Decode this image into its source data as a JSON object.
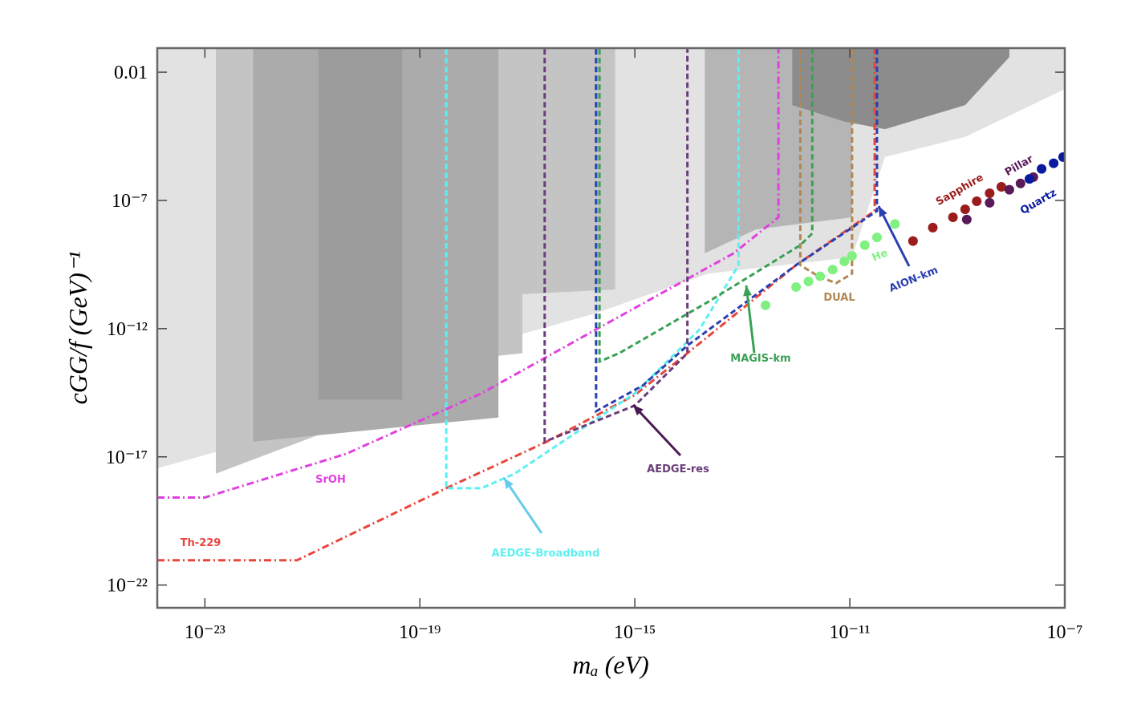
{
  "chart_data": {
    "type": "line",
    "x_label": "mₐ (eV)",
    "y_label": "cGG/f (GeV)⁻¹",
    "x_log": true,
    "y_log": true,
    "xlim": [
      1.3e-24,
      1e-07
    ],
    "ylim": [
      1.3e-23,
      0.087
    ],
    "xticks": [
      {
        "value": 1e-23,
        "label": "10⁻²³"
      },
      {
        "value": 1e-19,
        "label": "10⁻¹⁹"
      },
      {
        "value": 1e-15,
        "label": "10⁻¹⁵"
      },
      {
        "value": 1e-11,
        "label": "10⁻¹¹"
      },
      {
        "value": 1e-07,
        "label": "10⁻⁷"
      }
    ],
    "yticks": [
      0.01,
      {
        "value": 1e-07,
        "label": "10⁻⁷"
      },
      {
        "value": 1e-12,
        "label": "10⁻¹²"
      },
      {
        "value": 1e-17,
        "label": "10⁻¹⁷"
      },
      {
        "value": 1e-22,
        "label": "10⁻²²"
      }
    ],
    "regions": [
      {
        "color": "#e2e2e2",
        "x": [
          1.3e-24,
          2.3e-23,
          1.5e-21,
          9.3e-20,
          1.4e-18,
          1.8e-16,
          2.3e-14,
          1.1e-11,
          4.5e-11,
          1.4e-09,
          1e-07
        ],
        "values": [
          3.6e-18,
          1.9e-17,
          2.3e-16,
          1.2e-14,
          2.2e-13,
          3.9e-12,
          1.4e-10,
          6e-10,
          4.9e-06,
          3e-05,
          0.0022
        ]
      },
      {
        "color": "#c4c4c4",
        "x": [
          1.6e-23,
          1.5e-21,
          9.3e-20,
          1.4e-18,
          8.1e-18,
          8.1e-18,
          4.3e-16
        ],
        "values": [
          2.2e-18,
          8.1e-17,
          6e-15,
          7.4e-14,
          1.1e-13,
          2.2e-11,
          3.4e-11
        ]
      },
      {
        "color": "#ababab",
        "x": [
          7.9e-23,
          9.3e-20,
          2.9e-18
        ],
        "values": [
          3.9e-17,
          1.7e-16,
          3.4e-16
        ]
      },
      {
        "color": "#9c9c9c",
        "x": [
          1.3e-21,
          4.7e-20
        ],
        "values": [
          1.7e-15,
          1.7e-15
        ]
      },
      {
        "color": "#b5b5b5",
        "x": [
          2e-14,
          1.8e-13,
          1.1e-11
        ],
        "values": [
          8.7e-10,
          7.4e-09,
          2.2e-08
        ]
      },
      {
        "color": "#8c8c8c",
        "x": [
          8.5e-13,
          7.9e-12,
          4.5e-11,
          1.4e-09,
          9.3e-09
        ],
        "values": [
          0.00052,
          0.00012,
          6e-05,
          0.00052,
          0.039
        ]
      }
    ],
    "series": [
      {
        "name": "Th-229",
        "type": "line",
        "style": "dashdot",
        "color": "#e8453c",
        "x": [
          1.3e-24,
          5.2e-22,
          3.1e-19,
          2.3e-17,
          1e-15,
          9.5e-15,
          1e-12,
          2.9e-11,
          2.9e-11
        ],
        "values": [
          9.3e-22,
          9.3e-22,
          6e-19,
          3.9e-17,
          2.6e-15,
          1.1e-13,
          3e-10,
          3.9e-08,
          0.08
        ]
      },
      {
        "name": "SrOH",
        "type": "line",
        "style": "dashdot",
        "color": "#e040e0",
        "x": [
          1.3e-24,
          1e-23,
          4.2e-21,
          1.4e-18,
          1.9e-16,
          6.9e-14,
          4.7e-13,
          4.7e-13
        ],
        "values": [
          2.6e-19,
          2.6e-19,
          1.3e-17,
          3e-15,
          9.3e-13,
          8.7e-10,
          2.2e-08,
          0.08
        ]
      },
      {
        "name": "AEDGE-Broadband",
        "type": "line",
        "style": "dashed",
        "color": "#5ef0f0",
        "x": [
          3.1e-19,
          3.1e-19,
          1.4e-18,
          5.8e-18,
          1e-15,
          1.6e-14,
          8.5e-14,
          8.5e-14
        ],
        "values": [
          0.08,
          6e-19,
          6e-19,
          2.2e-18,
          3e-15,
          9.3e-13,
          3e-10,
          0.08
        ]
      },
      {
        "name": "AEDGE-res",
        "type": "line",
        "style": "dashed",
        "color": "#6a3d7a",
        "x": [
          2.1e-17,
          2.1e-17,
          1e-15,
          9.5e-15,
          9.5e-15
        ],
        "values": [
          0.08,
          3.9e-17,
          1e-15,
          1.1e-13,
          0.08
        ]
      },
      {
        "name": "AION-km",
        "type": "line",
        "style": "dashed",
        "color": "#2a3fb0",
        "x": [
          1.9e-16,
          1.9e-16,
          1.4e-15,
          9.5e-15,
          1e-12,
          3.2e-11,
          3.2e-11
        ],
        "values": [
          0.08,
          6e-16,
          6e-15,
          2.2e-13,
          3e-10,
          3.9e-08,
          0.08
        ]
      },
      {
        "name": "MAGIS-km",
        "type": "line",
        "style": "dashed",
        "color": "#3aa055",
        "x": [
          2.2e-16,
          2.2e-16,
          5.1e-16,
          2.3e-14,
          1.2e-12,
          2e-12,
          2e-12
        ],
        "values": [
          0.08,
          5.2e-14,
          1.1e-13,
          1.1e-11,
          1.8e-09,
          5.2e-09,
          0.08
        ]
      },
      {
        "name": "DUAL",
        "type": "line",
        "style": "dashed",
        "color": "#b08850",
        "x": [
          1.2e-12,
          1.2e-12,
          2.8e-12,
          5.6e-12,
          1.1e-11,
          1.1e-11
        ],
        "values": [
          0.08,
          3e-10,
          1e-10,
          6e-11,
          1.4e-10,
          0.08
        ]
      },
      {
        "name": "He",
        "type": "scatter",
        "color": "#80f080",
        "x": [
          2.7e-13,
          1e-12,
          1.7e-12,
          2.8e-12,
          4.8e-12,
          7.9e-12,
          1.1e-11,
          1.9e-11,
          3.2e-11,
          6.9e-11
        ],
        "values": [
          8.1e-12,
          4.2e-11,
          6.9e-11,
          1.1e-10,
          2e-10,
          4.2e-10,
          6.9e-10,
          1.8e-09,
          3.6e-09,
          1.2e-08
        ]
      },
      {
        "name": "Sapphire",
        "type": "scatter",
        "color": "#9b1c1c",
        "x": [
          1.5e-10,
          3.5e-10,
          8.3e-10,
          1.4e-09,
          2.3e-09,
          4e-09,
          6.6e-09
        ],
        "values": [
          2.6e-09,
          8.7e-09,
          2.2e-08,
          4.5e-08,
          9.3e-08,
          1.9e-07,
          3.4e-07
        ]
      },
      {
        "name": "Pillar",
        "type": "scatter",
        "color": "#5a1a5a",
        "x": [
          1.5e-09,
          4e-09,
          9.3e-09,
          1.5e-08,
          2.6e-08
        ],
        "values": [
          1.8e-08,
          8.1e-08,
          2.6e-07,
          4.6e-07,
          8.1e-07
        ]
      },
      {
        "name": "Quartz",
        "type": "scatter",
        "color": "#0a1aa0",
        "x": [
          2.2e-08,
          3.7e-08,
          6.2e-08,
          9.3e-08
        ],
        "values": [
          6.9e-07,
          1.7e-06,
          2.8e-06,
          4.9e-06
        ]
      }
    ]
  }
}
